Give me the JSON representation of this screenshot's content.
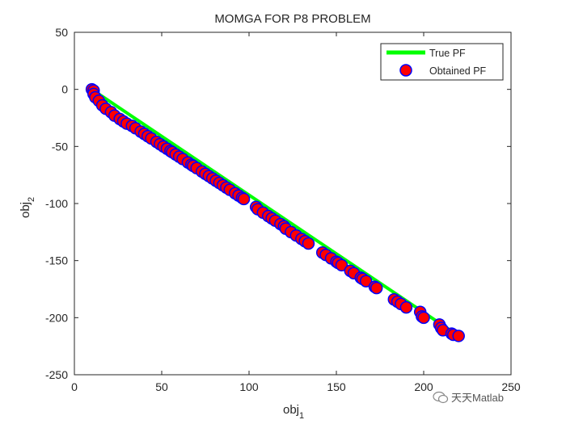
{
  "chart_data": {
    "type": "scatter",
    "title": "MOMGA FOR P8 PROBLEM",
    "xlabel": "obj",
    "xlabel_sub": "1",
    "ylabel": "obj",
    "ylabel_sub": "2",
    "xlim": [
      0,
      250
    ],
    "ylim": [
      -250,
      50
    ],
    "xticks": [
      0,
      50,
      100,
      150,
      200,
      250
    ],
    "yticks": [
      -250,
      -200,
      -150,
      -100,
      -50,
      0,
      50
    ],
    "grid": false,
    "legend_position": "top-right",
    "series": [
      {
        "name": "True PF",
        "kind": "line",
        "color": "#00ff00",
        "x": [
          10,
          220
        ],
        "y": [
          0,
          -216
        ]
      },
      {
        "name": "Obtained PF",
        "kind": "marker",
        "color": "#ff0000",
        "edge_color": "#0000ff",
        "x": [
          10,
          11,
          11,
          12,
          14,
          16,
          18,
          21,
          23,
          26,
          28,
          30,
          33,
          35,
          38,
          40,
          42,
          44,
          47,
          49,
          51,
          53,
          55,
          56,
          58,
          60,
          62,
          65,
          67,
          68,
          70,
          73,
          75,
          77,
          79,
          81,
          83,
          85,
          87,
          89,
          92,
          94,
          96,
          97,
          104,
          105,
          108,
          111,
          113,
          115,
          118,
          120,
          121,
          124,
          127,
          130,
          132,
          134,
          142,
          144,
          147,
          150,
          151,
          153,
          158,
          160,
          164,
          165,
          167,
          172,
          173,
          183,
          185,
          187,
          190,
          198,
          199,
          200,
          209,
          210,
          211,
          216,
          217,
          220
        ],
        "y": [
          0,
          -1,
          -4,
          -7,
          -10,
          -14,
          -17,
          -20,
          -23,
          -26,
          -28,
          -30,
          -32,
          -34,
          -37,
          -39,
          -41,
          -43,
          -46,
          -48,
          -50,
          -52,
          -54,
          -55,
          -57,
          -59,
          -61,
          -64,
          -66,
          -67,
          -69,
          -72,
          -74,
          -76,
          -78,
          -80,
          -82,
          -84,
          -86,
          -88,
          -91,
          -93,
          -95,
          -96,
          -103,
          -105,
          -108,
          -111,
          -113,
          -115,
          -118,
          -120,
          -122,
          -125,
          -128,
          -131,
          -133,
          -135,
          -143,
          -145,
          -148,
          -151,
          -152,
          -154,
          -159,
          -161,
          -165,
          -166,
          -168,
          -173,
          -174,
          -184,
          -186,
          -188,
          -191,
          -195,
          -199,
          -200,
          -206,
          -209,
          -211,
          -214,
          -215,
          -216
        ]
      }
    ]
  },
  "watermark": "天天Matlab"
}
